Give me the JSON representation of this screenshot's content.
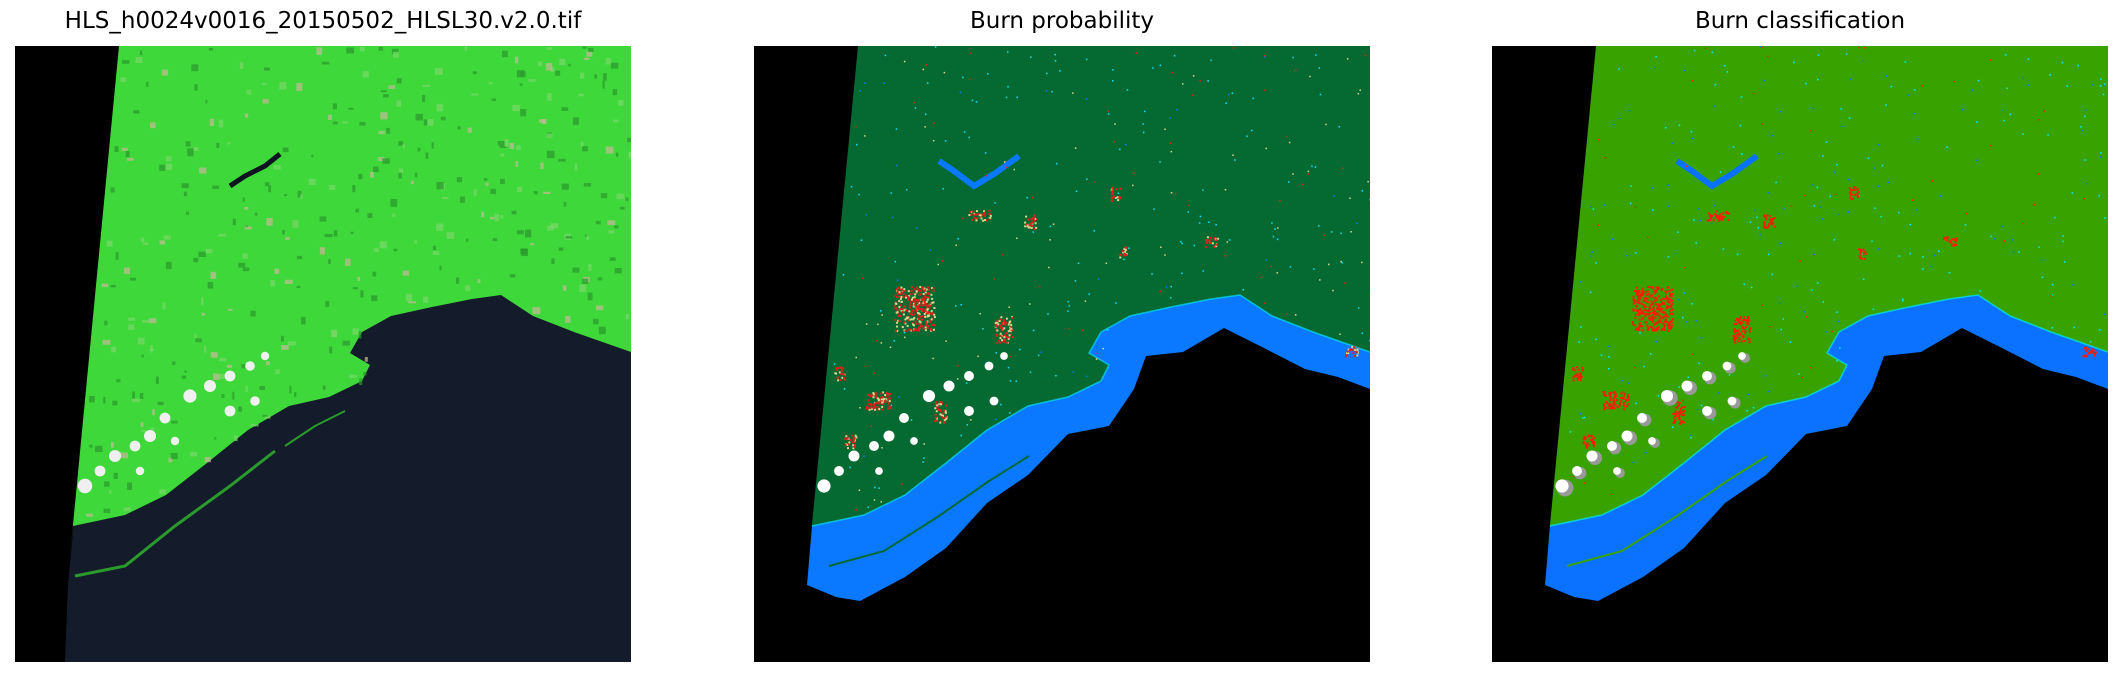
{
  "figure": {
    "panels": [
      {
        "title": "HLS_h0024v0016_20150502_HLSL30.v2.0.tif",
        "kind": "rgb-composite",
        "colors": {
          "nodata": "#000000",
          "land": "#3fd83a",
          "land_dark": "#2a9a2c",
          "water": "#141b2b",
          "cloud": "#f0f0f0"
        }
      },
      {
        "title": "Burn probability",
        "kind": "probability-map",
        "colors": {
          "nodata": "#000000",
          "land": "#056a32",
          "water": "#0a78ff",
          "burn": "#e0201a",
          "mid": "#d8d890",
          "cloud": "#ffffff",
          "cyan": "#00e5ff"
        }
      },
      {
        "title": "Burn classification",
        "kind": "classification-map",
        "colors": {
          "nodata": "#000000",
          "land": "#38a300",
          "water": "#0a72ff",
          "burn": "#ff1a0a",
          "cloud": "#ffffff",
          "cyan": "#00f0ff",
          "gray": "#999999"
        }
      }
    ]
  }
}
